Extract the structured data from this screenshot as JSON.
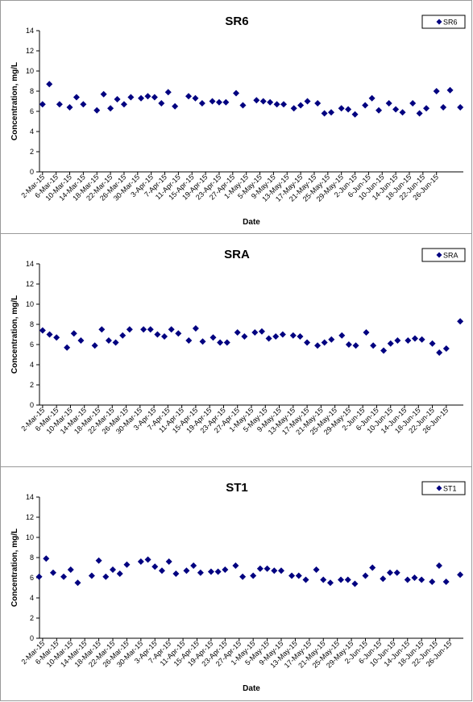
{
  "chart_data": [
    {
      "type": "scatter",
      "title": "SR6",
      "xlabel": "Date",
      "ylabel": "Concentration, mg/L",
      "ylim": [
        0,
        14
      ],
      "y_ticks": [
        0,
        2,
        4,
        6,
        8,
        10,
        12,
        14
      ],
      "grid": false,
      "legend": "top-right",
      "marker_color": "#000080",
      "x_tick_labels": [
        "2-Mar-15",
        "6-Mar-15",
        "10-Mar-15",
        "14-Mar-15",
        "18-Mar-15",
        "22-Mar-15",
        "26-Mar-15",
        "30-Mar-15",
        "3-Apr-15",
        "7-Apr-15",
        "11-Apr-15",
        "15-Apr-15",
        "19-Apr-15",
        "23-Apr-15",
        "27-Apr-15",
        "1-May-15",
        "5-May-15",
        "9-May-15",
        "13-May-15",
        "17-May-15",
        "21-May-15",
        "25-May-15",
        "29-May-15",
        "2-Jun-15",
        "6-Jun-15",
        "10-Jun-15",
        "14-Jun-15",
        "18-Jun-15",
        "22-Jun-15",
        "26-Jun-15"
      ],
      "series": [
        {
          "name": "SR6",
          "x": [
            "2015-03-02",
            "2015-03-04",
            "2015-03-07",
            "2015-03-10",
            "2015-03-12",
            "2015-03-14",
            "2015-03-18",
            "2015-03-20",
            "2015-03-22",
            "2015-03-24",
            "2015-03-26",
            "2015-03-28",
            "2015-03-31",
            "2015-04-02",
            "2015-04-04",
            "2015-04-06",
            "2015-04-08",
            "2015-04-10",
            "2015-04-14",
            "2015-04-16",
            "2015-04-18",
            "2015-04-21",
            "2015-04-23",
            "2015-04-25",
            "2015-04-28",
            "2015-04-30",
            "2015-05-04",
            "2015-05-06",
            "2015-05-08",
            "2015-05-10",
            "2015-05-12",
            "2015-05-15",
            "2015-05-17",
            "2015-05-19",
            "2015-05-22",
            "2015-05-24",
            "2015-05-26",
            "2015-05-29",
            "2015-05-31",
            "2015-06-02",
            "2015-06-05",
            "2015-06-07",
            "2015-06-09",
            "2015-06-12",
            "2015-06-14",
            "2015-06-16",
            "2015-06-19",
            "2015-06-21",
            "2015-06-23",
            "2015-06-26",
            "2015-06-28",
            "2015-06-30",
            "2015-07-03"
          ],
          "y": [
            6.7,
            8.7,
            6.7,
            6.4,
            7.4,
            6.7,
            6.1,
            7.7,
            6.3,
            7.2,
            6.7,
            7.4,
            7.3,
            7.5,
            7.4,
            6.8,
            7.9,
            6.5,
            7.5,
            7.3,
            6.8,
            7.0,
            6.9,
            6.9,
            7.8,
            6.6,
            7.1,
            7.0,
            6.9,
            6.7,
            6.7,
            6.3,
            6.6,
            7.0,
            6.8,
            5.8,
            5.9,
            6.3,
            6.2,
            5.7,
            6.6,
            7.3,
            6.1,
            6.8,
            6.2,
            5.9,
            6.8,
            5.8,
            6.3,
            8.0,
            6.4,
            8.1,
            6.4
          ]
        }
      ]
    },
    {
      "type": "scatter",
      "title": "SRA",
      "xlabel": "",
      "ylabel": "Concentration, mg/L",
      "ylim": [
        0,
        14
      ],
      "y_ticks": [
        0,
        2,
        4,
        6,
        8,
        10,
        12,
        14
      ],
      "grid": false,
      "legend": "top-right",
      "marker_color": "#000080",
      "x_tick_labels": [
        "2-Mar-15",
        "6-Mar-15",
        "10-Mar-15",
        "14-Mar-15",
        "18-Mar-15",
        "22-Mar-15",
        "26-Mar-15",
        "30-Mar-15",
        "3-Apr-15",
        "7-Apr-15",
        "11-Apr-15",
        "15-Apr-15",
        "19-Apr-15",
        "23-Apr-15",
        "27-Apr-15",
        "1-May-15",
        "5-May-15",
        "9-May-15",
        "13-May-15",
        "17-May-15",
        "21-May-15",
        "25-May-15",
        "29-May-15",
        "2-Jun-15",
        "6-Jun-15",
        "10-Jun-15",
        "14-Jun-15",
        "18-Jun-15",
        "22-Jun-15",
        "26-Jun-15"
      ],
      "series": [
        {
          "name": "SRA",
          "x": [
            "2015-03-02",
            "2015-03-04",
            "2015-03-06",
            "2015-03-09",
            "2015-03-11",
            "2015-03-13",
            "2015-03-17",
            "2015-03-19",
            "2015-03-21",
            "2015-03-23",
            "2015-03-25",
            "2015-03-27",
            "2015-03-31",
            "2015-04-02",
            "2015-04-04",
            "2015-04-06",
            "2015-04-08",
            "2015-04-10",
            "2015-04-13",
            "2015-04-15",
            "2015-04-17",
            "2015-04-20",
            "2015-04-22",
            "2015-04-24",
            "2015-04-27",
            "2015-04-29",
            "2015-05-02",
            "2015-05-04",
            "2015-05-06",
            "2015-05-08",
            "2015-05-10",
            "2015-05-13",
            "2015-05-15",
            "2015-05-17",
            "2015-05-20",
            "2015-05-22",
            "2015-05-24",
            "2015-05-27",
            "2015-05-29",
            "2015-05-31",
            "2015-06-03",
            "2015-06-05",
            "2015-06-08",
            "2015-06-10",
            "2015-06-12",
            "2015-06-15",
            "2015-06-17",
            "2015-06-19",
            "2015-06-22",
            "2015-06-24",
            "2015-06-26",
            "2015-06-30"
          ],
          "y": [
            7.4,
            7.0,
            6.7,
            5.7,
            7.1,
            6.4,
            5.9,
            7.5,
            6.4,
            6.2,
            6.9,
            7.5,
            7.5,
            7.5,
            7.0,
            6.8,
            7.5,
            7.1,
            6.4,
            7.6,
            6.3,
            6.7,
            6.2,
            6.2,
            7.2,
            6.8,
            7.2,
            7.3,
            6.6,
            6.8,
            7.0,
            6.9,
            6.8,
            6.2,
            5.9,
            6.2,
            6.5,
            6.9,
            6.0,
            5.9,
            7.2,
            5.9,
            5.4,
            6.1,
            6.4,
            6.4,
            6.6,
            6.5,
            6.1,
            5.2,
            5.6,
            8.3
          ]
        }
      ]
    },
    {
      "type": "scatter",
      "title": "ST1",
      "xlabel": "Date",
      "ylabel": "Concentration, mg/L",
      "ylim": [
        0,
        14
      ],
      "y_ticks": [
        0,
        2,
        4,
        6,
        8,
        10,
        12,
        14
      ],
      "grid": false,
      "legend": "top-right",
      "marker_color": "#000080",
      "x_tick_labels": [
        "2-Mar-15",
        "6-Mar-15",
        "10-Mar-15",
        "14-Mar-15",
        "18-Mar-15",
        "22-Mar-15",
        "26-Mar-15",
        "30-Mar-15",
        "3-Apr-15",
        "7-Apr-15",
        "11-Apr-15",
        "15-Apr-15",
        "19-Apr-15",
        "23-Apr-15",
        "27-Apr-15",
        "1-May-15",
        "5-May-15",
        "9-May-15",
        "13-May-15",
        "17-May-15",
        "21-May-15",
        "25-May-15",
        "29-May-15",
        "2-Jun-15",
        "6-Jun-15",
        "10-Jun-15",
        "14-Jun-15",
        "18-Jun-15",
        "22-Jun-15",
        "26-Jun-15"
      ],
      "series": [
        {
          "name": "ST1",
          "x": [
            "2015-03-01",
            "2015-03-03",
            "2015-03-05",
            "2015-03-08",
            "2015-03-10",
            "2015-03-12",
            "2015-03-16",
            "2015-03-18",
            "2015-03-20",
            "2015-03-22",
            "2015-03-24",
            "2015-03-26",
            "2015-03-30",
            "2015-04-01",
            "2015-04-03",
            "2015-04-05",
            "2015-04-07",
            "2015-04-09",
            "2015-04-12",
            "2015-04-14",
            "2015-04-16",
            "2015-04-19",
            "2015-04-21",
            "2015-04-23",
            "2015-04-26",
            "2015-04-28",
            "2015-05-01",
            "2015-05-03",
            "2015-05-05",
            "2015-05-07",
            "2015-05-09",
            "2015-05-12",
            "2015-05-14",
            "2015-05-16",
            "2015-05-19",
            "2015-05-21",
            "2015-05-23",
            "2015-05-26",
            "2015-05-28",
            "2015-05-30",
            "2015-06-02",
            "2015-06-04",
            "2015-06-07",
            "2015-06-09",
            "2015-06-11",
            "2015-06-14",
            "2015-06-16",
            "2015-06-18",
            "2015-06-21",
            "2015-06-23",
            "2015-06-25",
            "2015-06-29"
          ],
          "y": [
            6.1,
            7.9,
            6.5,
            6.1,
            6.8,
            5.5,
            6.2,
            7.7,
            6.1,
            6.8,
            6.4,
            7.3,
            7.6,
            7.8,
            7.1,
            6.7,
            7.6,
            6.4,
            6.7,
            7.2,
            6.5,
            6.6,
            6.6,
            6.8,
            7.2,
            6.1,
            6.2,
            6.9,
            6.9,
            6.7,
            6.7,
            6.2,
            6.2,
            5.8,
            6.8,
            5.8,
            5.5,
            5.8,
            5.8,
            5.4,
            6.2,
            7.0,
            5.9,
            6.5,
            6.5,
            5.8,
            6.0,
            5.8,
            5.6,
            7.2,
            5.6,
            6.3
          ]
        }
      ]
    }
  ]
}
